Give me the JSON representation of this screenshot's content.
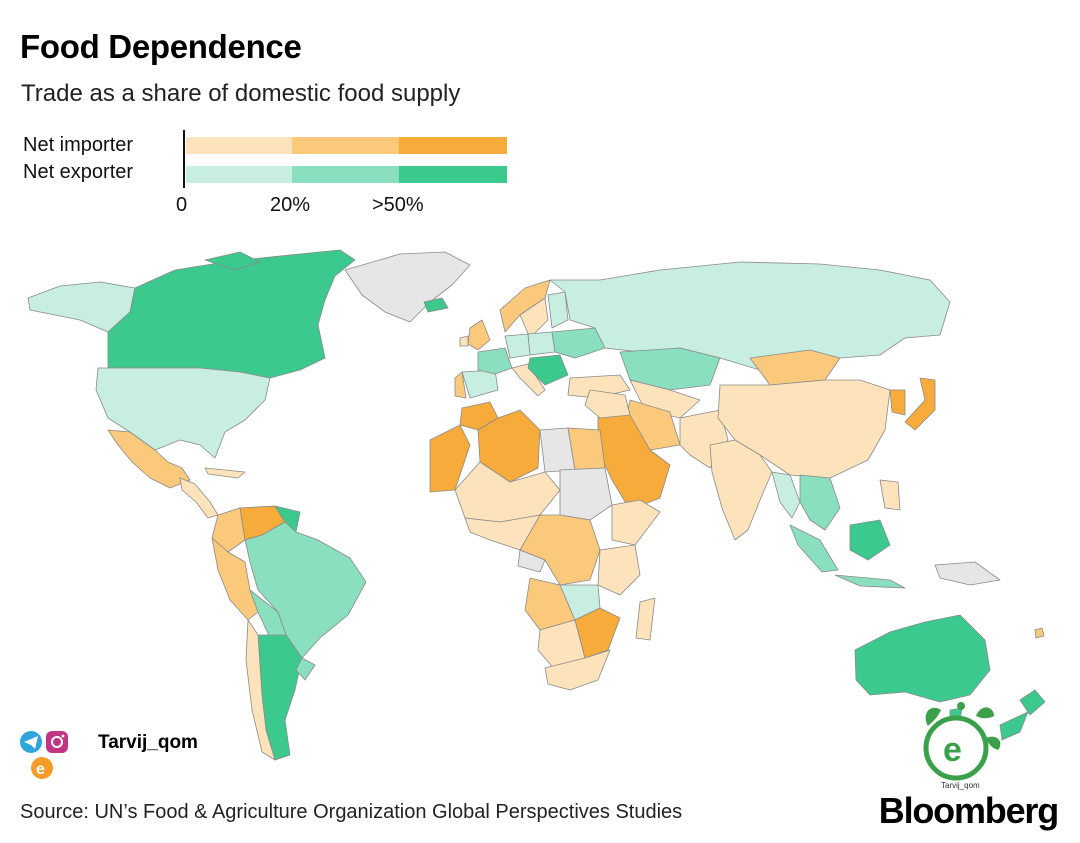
{
  "title": "Food Dependence",
  "subtitle": "Trade as a share of domestic food supply",
  "legend": {
    "rows": [
      {
        "label": "Net importer",
        "colors": [
          "#fde3bb",
          "#fbc97c",
          "#f6ab3b"
        ]
      },
      {
        "label": "Net exporter",
        "colors": [
          "#c7eee0",
          "#8adfbf",
          "#3cc98e"
        ]
      }
    ],
    "ticks": [
      "0",
      "20%",
      ">50%"
    ]
  },
  "source": "Source: UN’s Food & Agriculture Organization Global Perspectives Studies",
  "brand": "Bloomberg",
  "watermark": {
    "handle": "Tarvij_qom",
    "logo_letter": "e",
    "logo_caption": "Tarvij_qom"
  },
  "colors": {
    "no_data": "#e6e6e6",
    "border": "#8a8a8a",
    "imp1": "#fde3bb",
    "imp2": "#fbc97c",
    "imp3": "#f6ab3b",
    "exp1": "#c7eee0",
    "exp2": "#8adfbf",
    "exp3": "#3cc98e"
  }
}
